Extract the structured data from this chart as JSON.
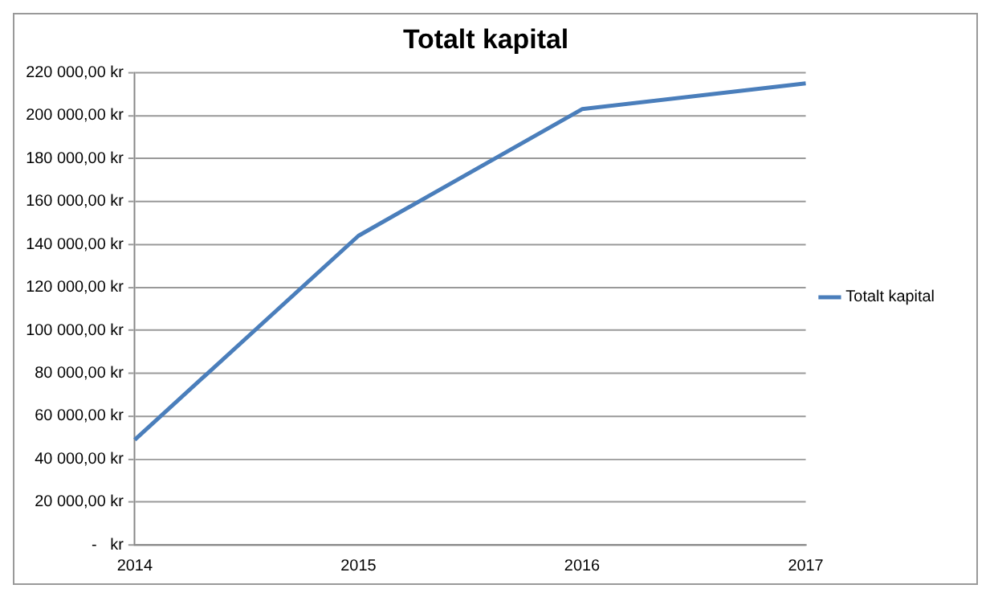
{
  "chart_data": {
    "type": "line",
    "title": "Totalt kapital",
    "categories": [
      "2014",
      "2015",
      "2016",
      "2017"
    ],
    "series": [
      {
        "name": "Totalt kapital",
        "color": "#4a7ebb",
        "values": [
          49000,
          144000,
          203000,
          215000
        ]
      }
    ],
    "ylim": [
      0,
      220000
    ],
    "yticks": [
      {
        "value": 0,
        "label": "-   kr"
      },
      {
        "value": 20000,
        "label": "20 000,00 kr"
      },
      {
        "value": 40000,
        "label": "40 000,00 kr"
      },
      {
        "value": 60000,
        "label": "60 000,00 kr"
      },
      {
        "value": 80000,
        "label": "80 000,00 kr"
      },
      {
        "value": 100000,
        "label": "100 000,00 kr"
      },
      {
        "value": 120000,
        "label": "120 000,00 kr"
      },
      {
        "value": 140000,
        "label": "140 000,00 kr"
      },
      {
        "value": 160000,
        "label": "160 000,00 kr"
      },
      {
        "value": 180000,
        "label": "180 000,00 kr"
      },
      {
        "value": 200000,
        "label": "200 000,00 kr"
      },
      {
        "value": 220000,
        "label": "220 000,00 kr"
      }
    ],
    "grid": "y",
    "legend": "right",
    "marker": "none",
    "line_style": "solid"
  }
}
